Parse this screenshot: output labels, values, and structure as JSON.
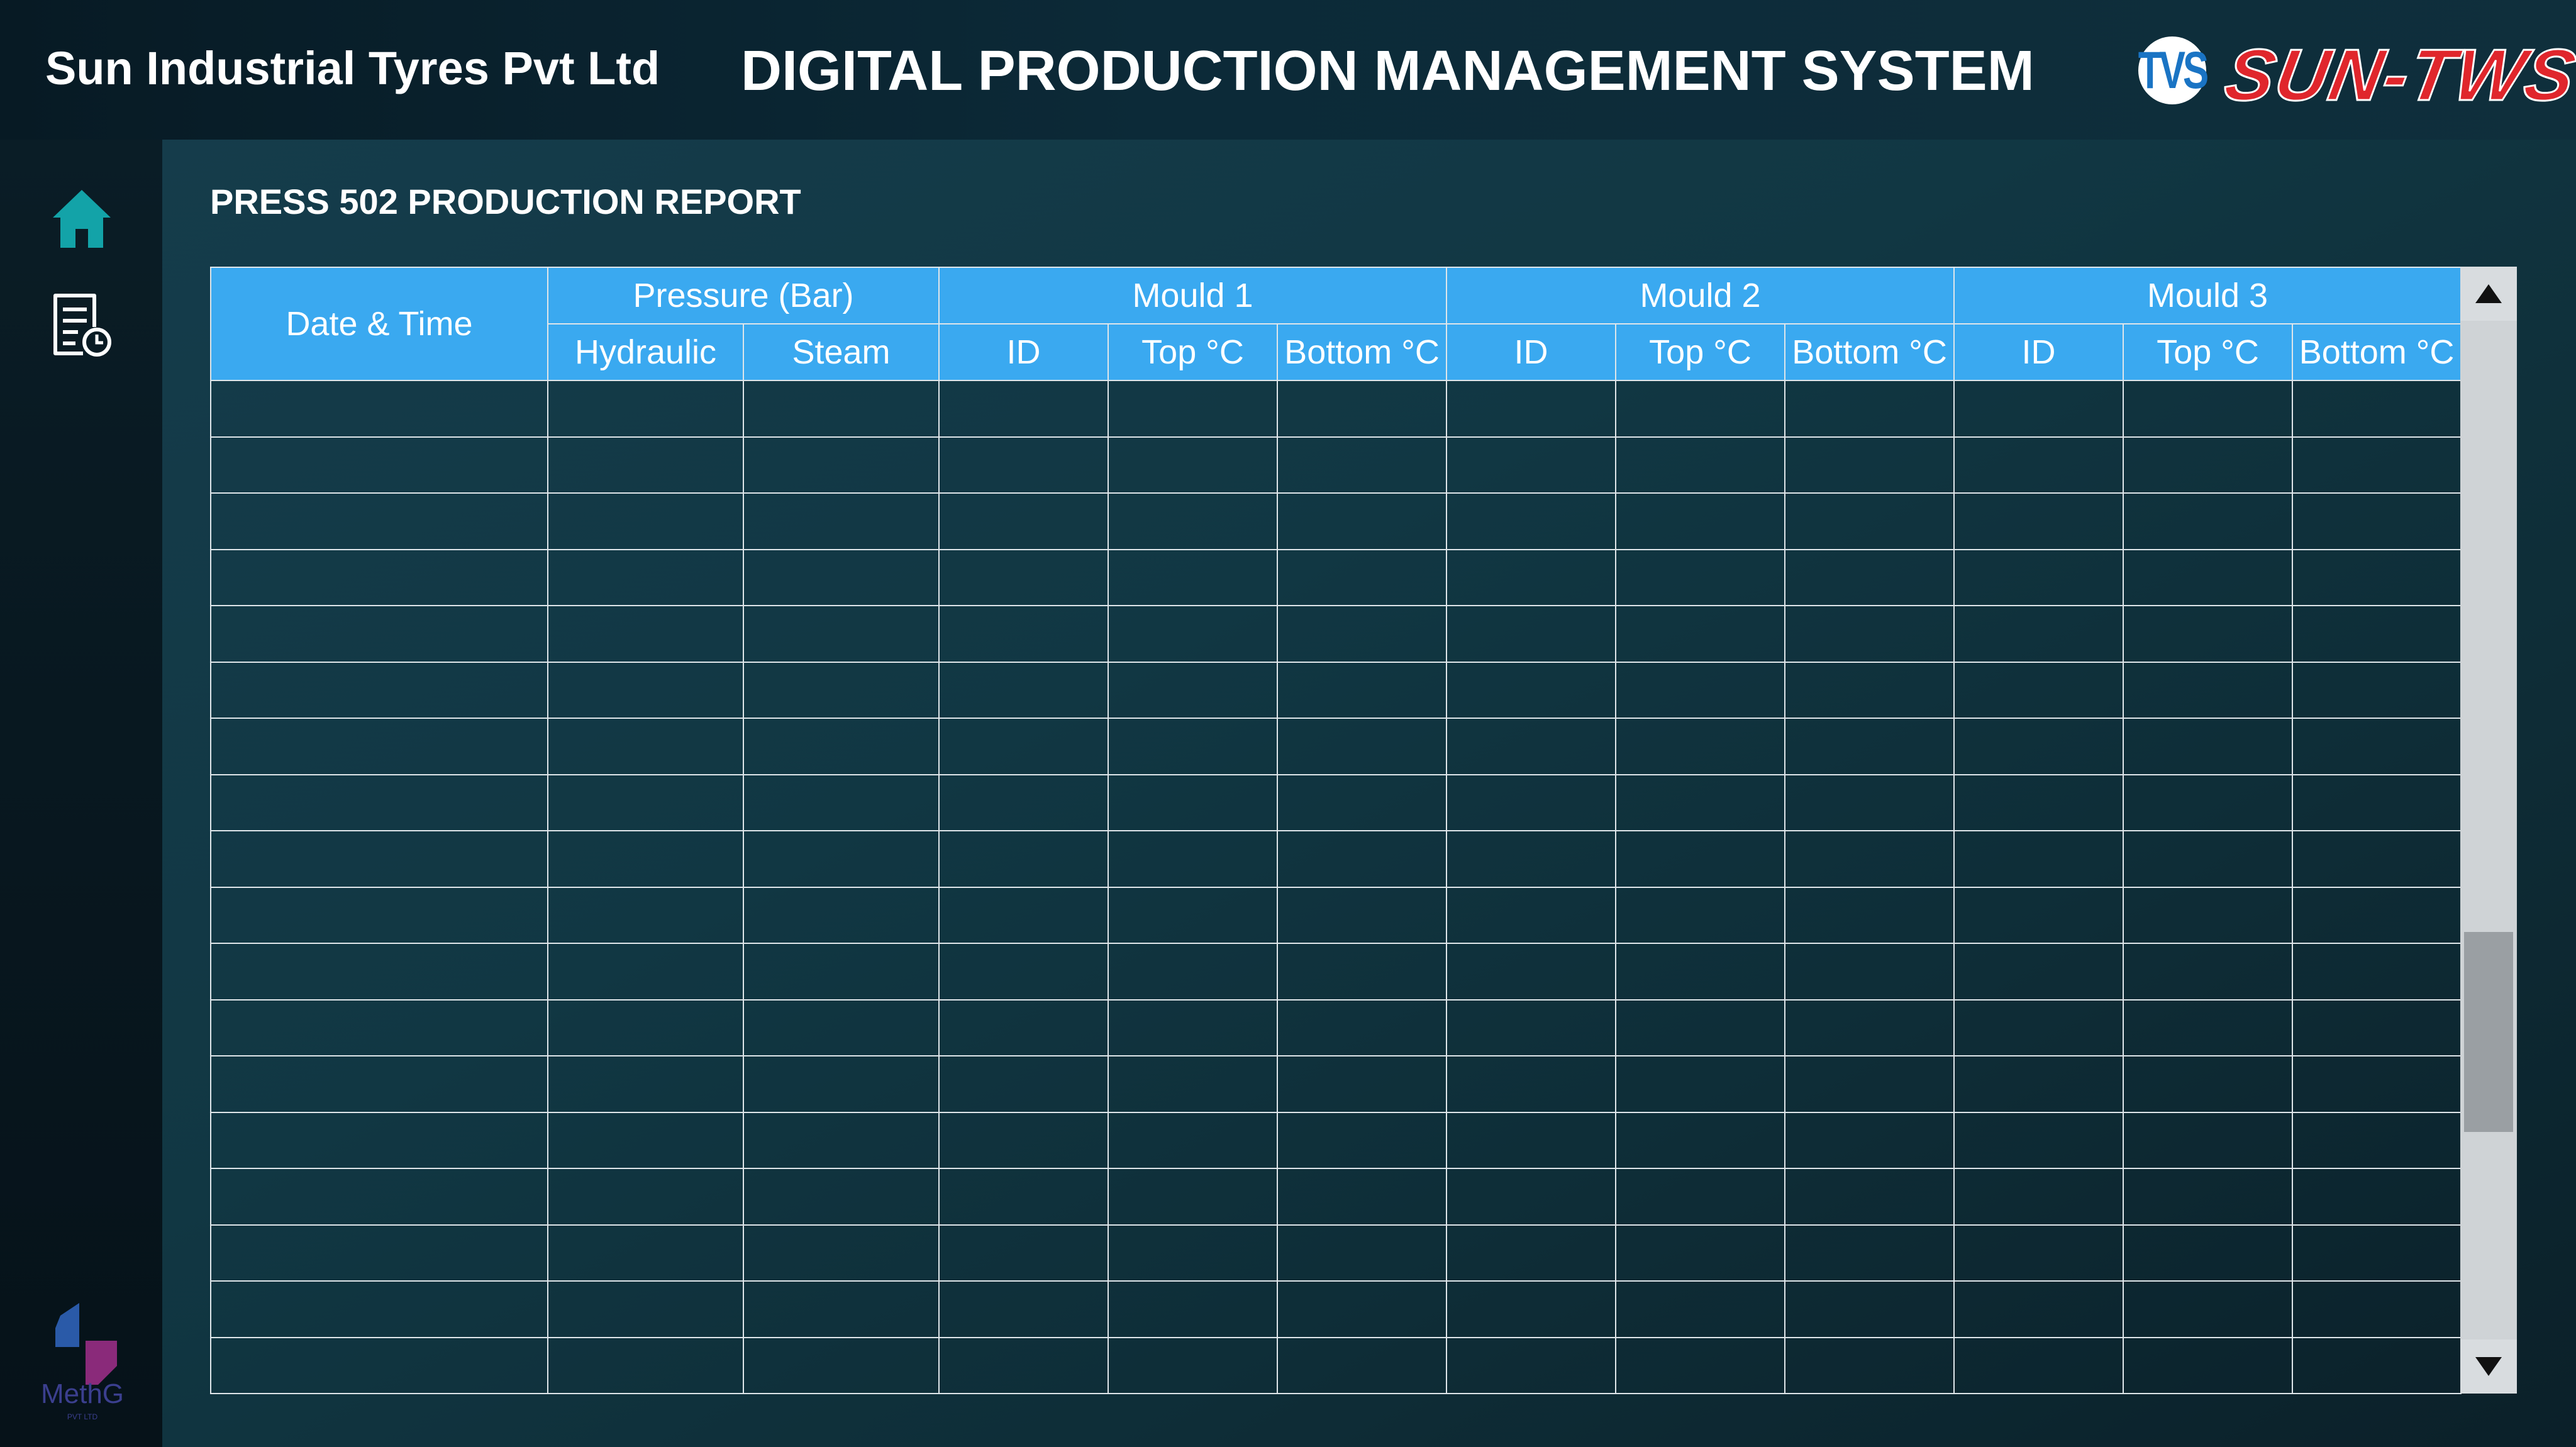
{
  "header": {
    "company": "Sun Industrial Tyres Pvt Ltd",
    "system_title": "DIGITAL PRODUCTION MANAGEMENT SYSTEM",
    "tvs_logo_text": "TVS",
    "brand_logo_text": "SUN-TWS"
  },
  "sidebar": {
    "items": [
      {
        "name": "home",
        "icon": "home-icon"
      },
      {
        "name": "report",
        "icon": "report-clock-icon"
      }
    ],
    "vendor_logo_text": "MethG",
    "vendor_logo_subtext": "PVT LTD"
  },
  "report": {
    "title": "PRESS 502 PRODUCTION REPORT",
    "columns": {
      "date_time": "Date & Time",
      "pressure_group": "Pressure (Bar)",
      "hydraulic": "Hydraulic",
      "steam": "Steam",
      "moulds": [
        {
          "label": "Mould 1",
          "id": "ID",
          "top": "Top °C",
          "bottom": "Bottom °C"
        },
        {
          "label": "Mould 2",
          "id": "ID",
          "top": "Top °C",
          "bottom": "Bottom °C"
        },
        {
          "label": "Mould 3",
          "id": "ID",
          "top": "Top °C",
          "bottom": "Bottom °C"
        }
      ]
    },
    "empty_rows": 18
  },
  "colors": {
    "header_cell": "#3aa9f0",
    "grid_line": "#dfe6ea",
    "brand_red": "#e0262c",
    "tvs_blue": "#1a74c4",
    "home_icon": "#13a3a8"
  }
}
